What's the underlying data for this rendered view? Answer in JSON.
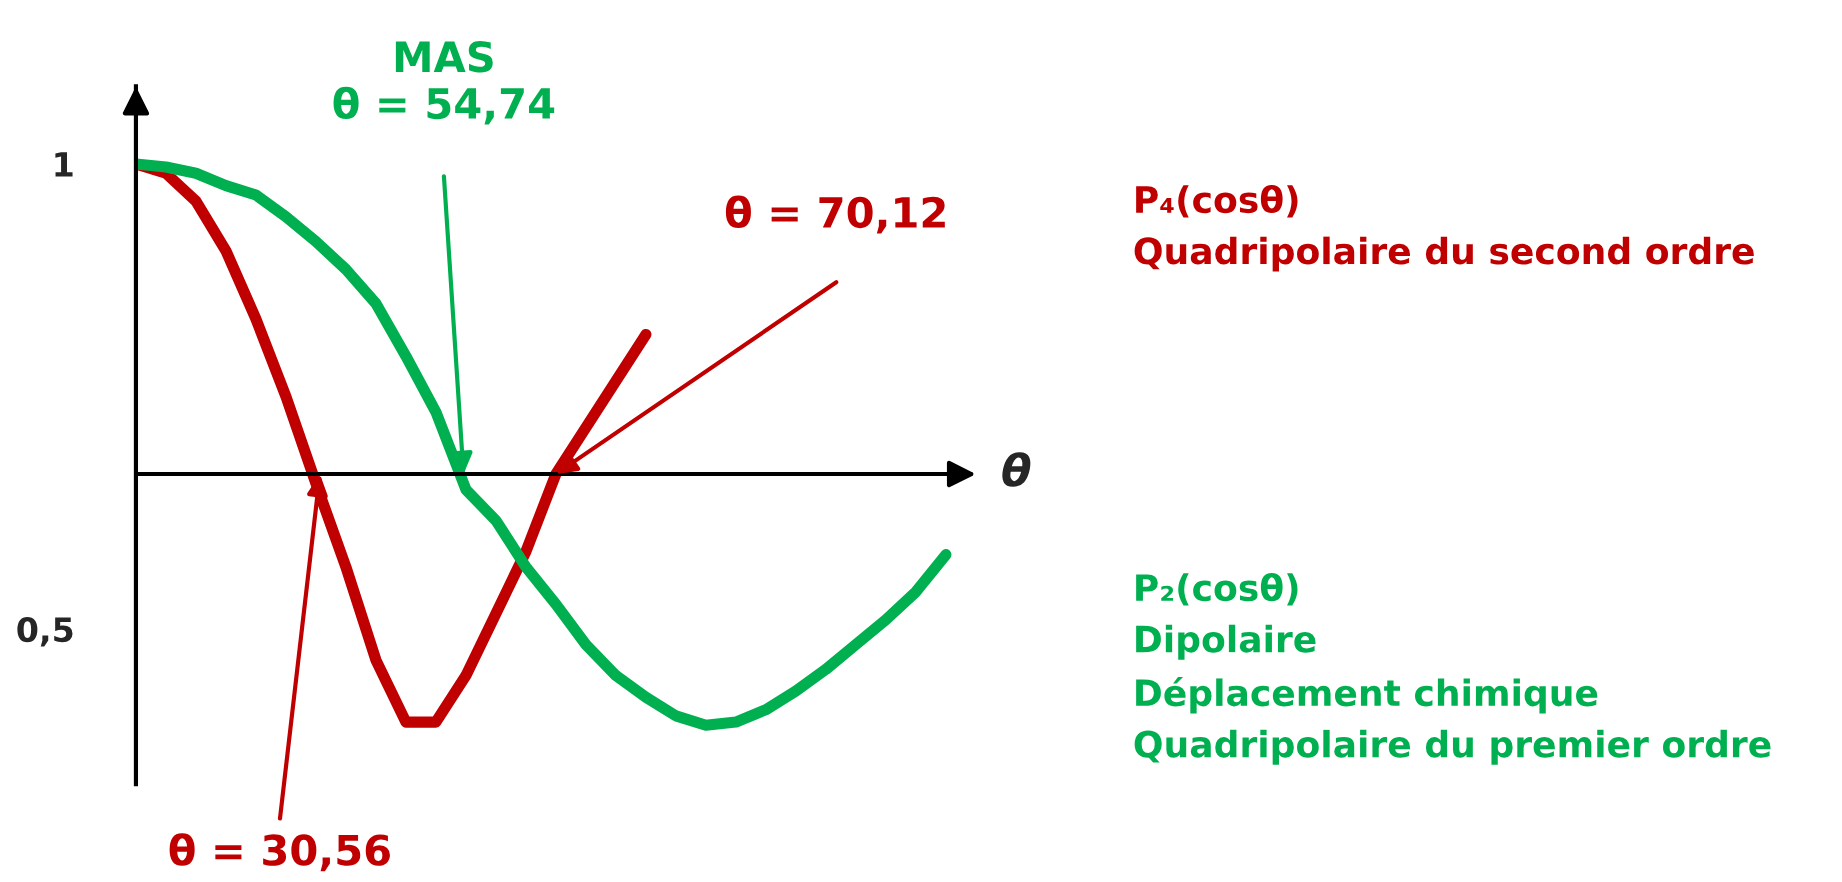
{
  "chart_data": {
    "type": "line",
    "xlabel": "θ",
    "categories": [
      null,
      null,
      null,
      null,
      null,
      null,
      null,
      null,
      null,
      null,
      null,
      null,
      null,
      null,
      null,
      null,
      null,
      null,
      null,
      null,
      null,
      null,
      null,
      null,
      null,
      null,
      null,
      null
    ],
    "ylim": [
      -1.0,
      1.25
    ],
    "yticks": [
      {
        "value": 1,
        "label": "1"
      },
      {
        "value": -0.5,
        "label": "0,5"
      }
    ],
    "series": [
      {
        "name": "P₄(cosθ)\nQuadripolaire du second ordre",
        "color": "#c00000",
        "values": [
          1,
          0.97,
          0.88,
          0.72,
          0.5,
          0.25,
          -0.03,
          -0.3,
          -0.6,
          -0.8,
          -0.8,
          -0.65,
          -0.45,
          -0.25,
          0,
          0.15,
          0.3,
          0.45,
          null,
          null,
          null,
          null,
          null,
          null,
          null,
          null,
          null,
          null
        ]
      },
      {
        "name": "P₂(cosθ)\nDipolaire\nDéplacement chimique\nQuadripolaire du premier ordre",
        "color": "#00b050",
        "values": [
          1,
          0.99,
          0.97,
          0.93,
          0.9,
          0.83,
          0.75,
          0.66,
          0.55,
          0.38,
          0.2,
          -0.05,
          -0.15,
          -0.3,
          -0.42,
          -0.55,
          -0.65,
          -0.72,
          -0.78,
          -0.81,
          -0.8,
          -0.76,
          -0.7,
          -0.63,
          -0.55,
          -0.47,
          -0.38,
          -0.26
        ]
      }
    ],
    "annotations": [
      "MAS\nθ = 54,74",
      "θ = 70,12",
      "θ = 30,56"
    ],
    "legend": false,
    "grid": false
  }
}
